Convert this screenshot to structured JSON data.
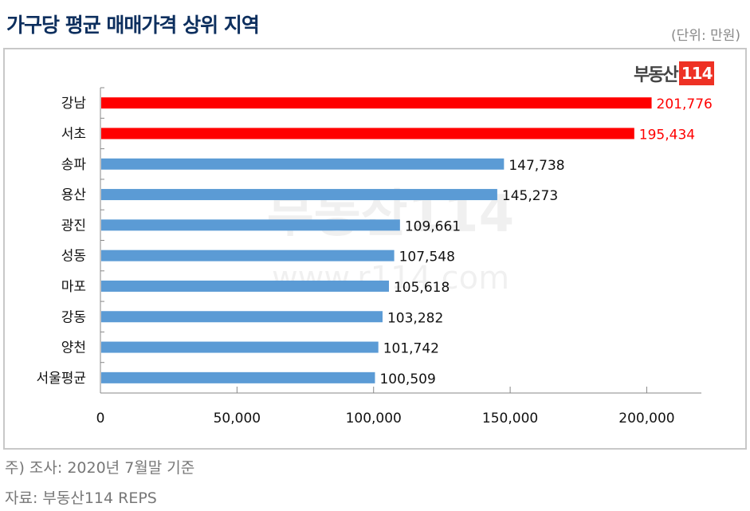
{
  "header": {
    "title": "가구당 평균 매매가격 상위 지역",
    "unit": "(단위: 만원)"
  },
  "logo": {
    "text": "부동산",
    "number": "114"
  },
  "watermark": {
    "logo": "부동산114",
    "url": "www.r114.com"
  },
  "colors": {
    "highlight": "#ff0000",
    "default": "#5b9bd5",
    "title": "#0d2f5e"
  },
  "chart_data": {
    "type": "bar",
    "orientation": "horizontal",
    "title": "가구당 평균 매매가격 상위 지역",
    "categories": [
      "강남",
      "서초",
      "송파",
      "용산",
      "광진",
      "성동",
      "마포",
      "강동",
      "양천",
      "서울평균"
    ],
    "values": [
      201776,
      195434,
      147738,
      145273,
      109661,
      107548,
      105618,
      103282,
      101742,
      100509
    ],
    "value_labels": [
      "201,776",
      "195,434",
      "147,738",
      "145,273",
      "109,661",
      "107,548",
      "105,618",
      "103,282",
      "101,742",
      "100,509"
    ],
    "highlighted": [
      true,
      true,
      false,
      false,
      false,
      false,
      false,
      false,
      false,
      false
    ],
    "xlim": [
      0,
      220000
    ],
    "xticks": [
      0,
      50000,
      100000,
      150000,
      200000
    ],
    "xtick_labels": [
      "0",
      "50,000",
      "100,000",
      "150,000",
      "200,000"
    ],
    "xlabel": "",
    "ylabel": "",
    "grid": false,
    "legend": "none"
  },
  "footer": {
    "note": "주) 조사: 2020년 7월말 기준",
    "source": "자료: 부동산114 REPS"
  }
}
